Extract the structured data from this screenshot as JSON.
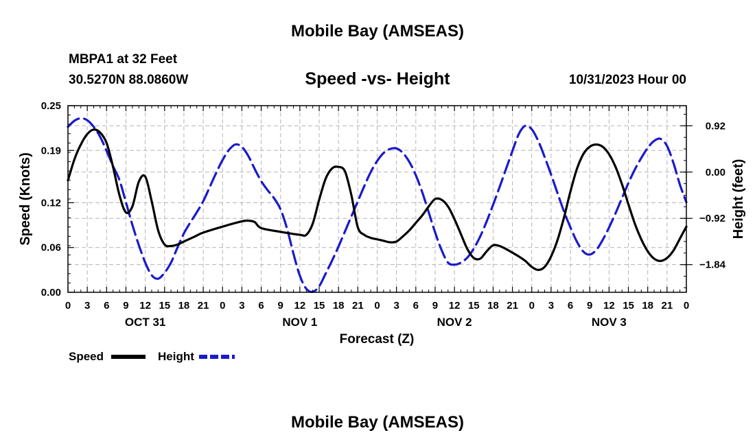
{
  "header": {
    "title": "Mobile Bay (AMSEAS)",
    "station": "MBPA1 at 32 Feet",
    "coords": "30.5270N  88.0860W",
    "subtitle": "Speed -vs- Height",
    "datetime": "10/31/2023 Hour 00"
  },
  "footer": {
    "title": "Mobile Bay (AMSEAS)"
  },
  "chart_data": {
    "type": "line",
    "title": "Speed -vs- Height",
    "xlabel": "Forecast (Z)",
    "ylabel": "Speed (Knots)",
    "y2label": "Height (feet)",
    "x_range": [
      0,
      96
    ],
    "x_tick_labels": [
      "0",
      "3",
      "6",
      "9",
      "12",
      "15",
      "18",
      "21",
      "0",
      "3",
      "6",
      "9",
      "12",
      "15",
      "18",
      "21",
      "0",
      "3",
      "6",
      "9",
      "12",
      "15",
      "18",
      "21",
      "0",
      "3",
      "6",
      "9",
      "12",
      "15",
      "18",
      "21",
      "0"
    ],
    "day_labels": [
      {
        "label": "OCT 31",
        "hour": 12
      },
      {
        "label": "NOV 1",
        "hour": 36
      },
      {
        "label": "NOV 2",
        "hour": 60
      },
      {
        "label": "NOV 3",
        "hour": 84
      }
    ],
    "ylim": [
      0,
      0.25
    ],
    "y_ticks": [
      0.0,
      0.06,
      0.12,
      0.19,
      0.25
    ],
    "y_tick_labels": [
      "0.00",
      "0.06",
      "0.12",
      "0.19",
      "0.25"
    ],
    "y2lim": [
      -2.39,
      1.32
    ],
    "y2_ticks": [
      0.92,
      0.0,
      -0.92,
      -1.84
    ],
    "y2_tick_labels": [
      "0.92",
      "0.00",
      "−0.92",
      "−1.84"
    ],
    "grid": true,
    "legend": [
      {
        "label": "Speed",
        "color": "#000000",
        "style": "solid"
      },
      {
        "label": "Height",
        "color": "#1a1acc",
        "style": "dashed"
      }
    ],
    "series": [
      {
        "name": "Speed",
        "axis": "left",
        "color": "#000000",
        "points": [
          [
            0,
            0.15
          ],
          [
            1,
            0.178
          ],
          [
            2,
            0.198
          ],
          [
            3,
            0.212
          ],
          [
            4,
            0.218
          ],
          [
            5,
            0.214
          ],
          [
            6,
            0.2
          ],
          [
            7,
            0.168
          ],
          [
            8,
            0.13
          ],
          [
            9,
            0.107
          ],
          [
            10,
            0.115
          ],
          [
            11,
            0.148
          ],
          [
            12,
            0.155
          ],
          [
            13,
            0.122
          ],
          [
            14,
            0.083
          ],
          [
            15,
            0.064
          ],
          [
            16,
            0.062
          ],
          [
            17,
            0.064
          ],
          [
            18,
            0.068
          ],
          [
            19,
            0.072
          ],
          [
            20,
            0.076
          ],
          [
            21,
            0.08
          ],
          [
            24,
            0.088
          ],
          [
            27,
            0.095
          ],
          [
            28,
            0.096
          ],
          [
            29,
            0.094
          ],
          [
            30,
            0.086
          ],
          [
            33,
            0.081
          ],
          [
            36,
            0.077
          ],
          [
            37,
            0.077
          ],
          [
            38,
            0.092
          ],
          [
            39,
            0.124
          ],
          [
            40,
            0.152
          ],
          [
            41,
            0.166
          ],
          [
            42,
            0.168
          ],
          [
            43,
            0.162
          ],
          [
            44,
            0.13
          ],
          [
            45,
            0.087
          ],
          [
            46,
            0.077
          ],
          [
            47,
            0.073
          ],
          [
            48,
            0.071
          ],
          [
            49,
            0.069
          ],
          [
            50,
            0.067
          ],
          [
            51,
            0.068
          ],
          [
            52,
            0.075
          ],
          [
            53,
            0.083
          ],
          [
            54,
            0.093
          ],
          [
            55,
            0.103
          ],
          [
            56,
            0.115
          ],
          [
            57,
            0.125
          ],
          [
            58,
            0.124
          ],
          [
            59,
            0.115
          ],
          [
            60,
            0.098
          ],
          [
            61,
            0.078
          ],
          [
            62,
            0.058
          ],
          [
            63,
            0.046
          ],
          [
            64,
            0.045
          ],
          [
            65,
            0.055
          ],
          [
            66,
            0.063
          ],
          [
            67,
            0.062
          ],
          [
            68,
            0.058
          ],
          [
            69,
            0.053
          ],
          [
            70,
            0.048
          ],
          [
            71,
            0.042
          ],
          [
            72,
            0.034
          ],
          [
            73,
            0.03
          ],
          [
            74,
            0.034
          ],
          [
            75,
            0.048
          ],
          [
            76,
            0.07
          ],
          [
            77,
            0.1
          ],
          [
            78,
            0.135
          ],
          [
            79,
            0.165
          ],
          [
            80,
            0.185
          ],
          [
            81,
            0.195
          ],
          [
            82,
            0.198
          ],
          [
            83,
            0.195
          ],
          [
            84,
            0.185
          ],
          [
            85,
            0.168
          ],
          [
            86,
            0.145
          ],
          [
            87,
            0.118
          ],
          [
            88,
            0.092
          ],
          [
            89,
            0.071
          ],
          [
            90,
            0.055
          ],
          [
            91,
            0.045
          ],
          [
            92,
            0.042
          ],
          [
            93,
            0.046
          ],
          [
            94,
            0.056
          ],
          [
            95,
            0.072
          ],
          [
            96,
            0.088
          ]
        ]
      },
      {
        "name": "Height",
        "axis": "right",
        "color": "#1a1acc",
        "points": [
          [
            0,
            0.9
          ],
          [
            1,
            1.02
          ],
          [
            2,
            1.07
          ],
          [
            3,
            1.03
          ],
          [
            4,
            0.9
          ],
          [
            5,
            0.7
          ],
          [
            6,
            0.42
          ],
          [
            7,
            0.12
          ],
          [
            8,
            -0.16
          ],
          [
            9,
            -0.6
          ],
          [
            10,
            -1.05
          ],
          [
            11,
            -1.45
          ],
          [
            12,
            -1.8
          ],
          [
            13,
            -2.05
          ],
          [
            14,
            -2.12
          ],
          [
            15,
            -2.0
          ],
          [
            16,
            -1.8
          ],
          [
            17,
            -1.5
          ],
          [
            18,
            -1.22
          ],
          [
            19,
            -1.0
          ],
          [
            20,
            -0.8
          ],
          [
            21,
            -0.58
          ],
          [
            22,
            -0.3
          ],
          [
            23,
            -0.02
          ],
          [
            24,
            0.24
          ],
          [
            25,
            0.44
          ],
          [
            26,
            0.55
          ],
          [
            27,
            0.5
          ],
          [
            28,
            0.32
          ],
          [
            29,
            0.06
          ],
          [
            30,
            -0.18
          ],
          [
            31,
            -0.36
          ],
          [
            32,
            -0.52
          ],
          [
            33,
            -0.74
          ],
          [
            34,
            -1.12
          ],
          [
            35,
            -1.62
          ],
          [
            36,
            -2.06
          ],
          [
            37,
            -2.32
          ],
          [
            38,
            -2.38
          ],
          [
            39,
            -2.27
          ],
          [
            40,
            -2.02
          ],
          [
            41,
            -1.76
          ],
          [
            42,
            -1.48
          ],
          [
            43,
            -1.18
          ],
          [
            44,
            -0.88
          ],
          [
            45,
            -0.58
          ],
          [
            46,
            -0.28
          ],
          [
            47,
            0.0
          ],
          [
            48,
            0.22
          ],
          [
            49,
            0.38
          ],
          [
            50,
            0.46
          ],
          [
            51,
            0.47
          ],
          [
            52,
            0.38
          ],
          [
            53,
            0.2
          ],
          [
            54,
            -0.06
          ],
          [
            55,
            -0.4
          ],
          [
            56,
            -0.8
          ],
          [
            57,
            -1.2
          ],
          [
            58,
            -1.55
          ],
          [
            59,
            -1.8
          ],
          [
            60,
            -1.84
          ],
          [
            61,
            -1.8
          ],
          [
            62,
            -1.7
          ],
          [
            63,
            -1.52
          ],
          [
            64,
            -1.28
          ],
          [
            65,
            -0.98
          ],
          [
            66,
            -0.65
          ],
          [
            67,
            -0.3
          ],
          [
            68,
            0.06
          ],
          [
            69,
            0.42
          ],
          [
            70,
            0.76
          ],
          [
            71,
            0.92
          ],
          [
            72,
            0.85
          ],
          [
            73,
            0.62
          ],
          [
            74,
            0.3
          ],
          [
            75,
            -0.05
          ],
          [
            76,
            -0.42
          ],
          [
            77,
            -0.78
          ],
          [
            78,
            -1.1
          ],
          [
            79,
            -1.38
          ],
          [
            80,
            -1.58
          ],
          [
            81,
            -1.64
          ],
          [
            82,
            -1.55
          ],
          [
            83,
            -1.35
          ],
          [
            84,
            -1.1
          ],
          [
            85,
            -0.82
          ],
          [
            86,
            -0.52
          ],
          [
            87,
            -0.22
          ],
          [
            88,
            0.05
          ],
          [
            89,
            0.28
          ],
          [
            90,
            0.48
          ],
          [
            91,
            0.62
          ],
          [
            92,
            0.66
          ],
          [
            93,
            0.52
          ],
          [
            94,
            0.18
          ],
          [
            95,
            -0.25
          ],
          [
            96,
            -0.6
          ]
        ]
      }
    ]
  }
}
